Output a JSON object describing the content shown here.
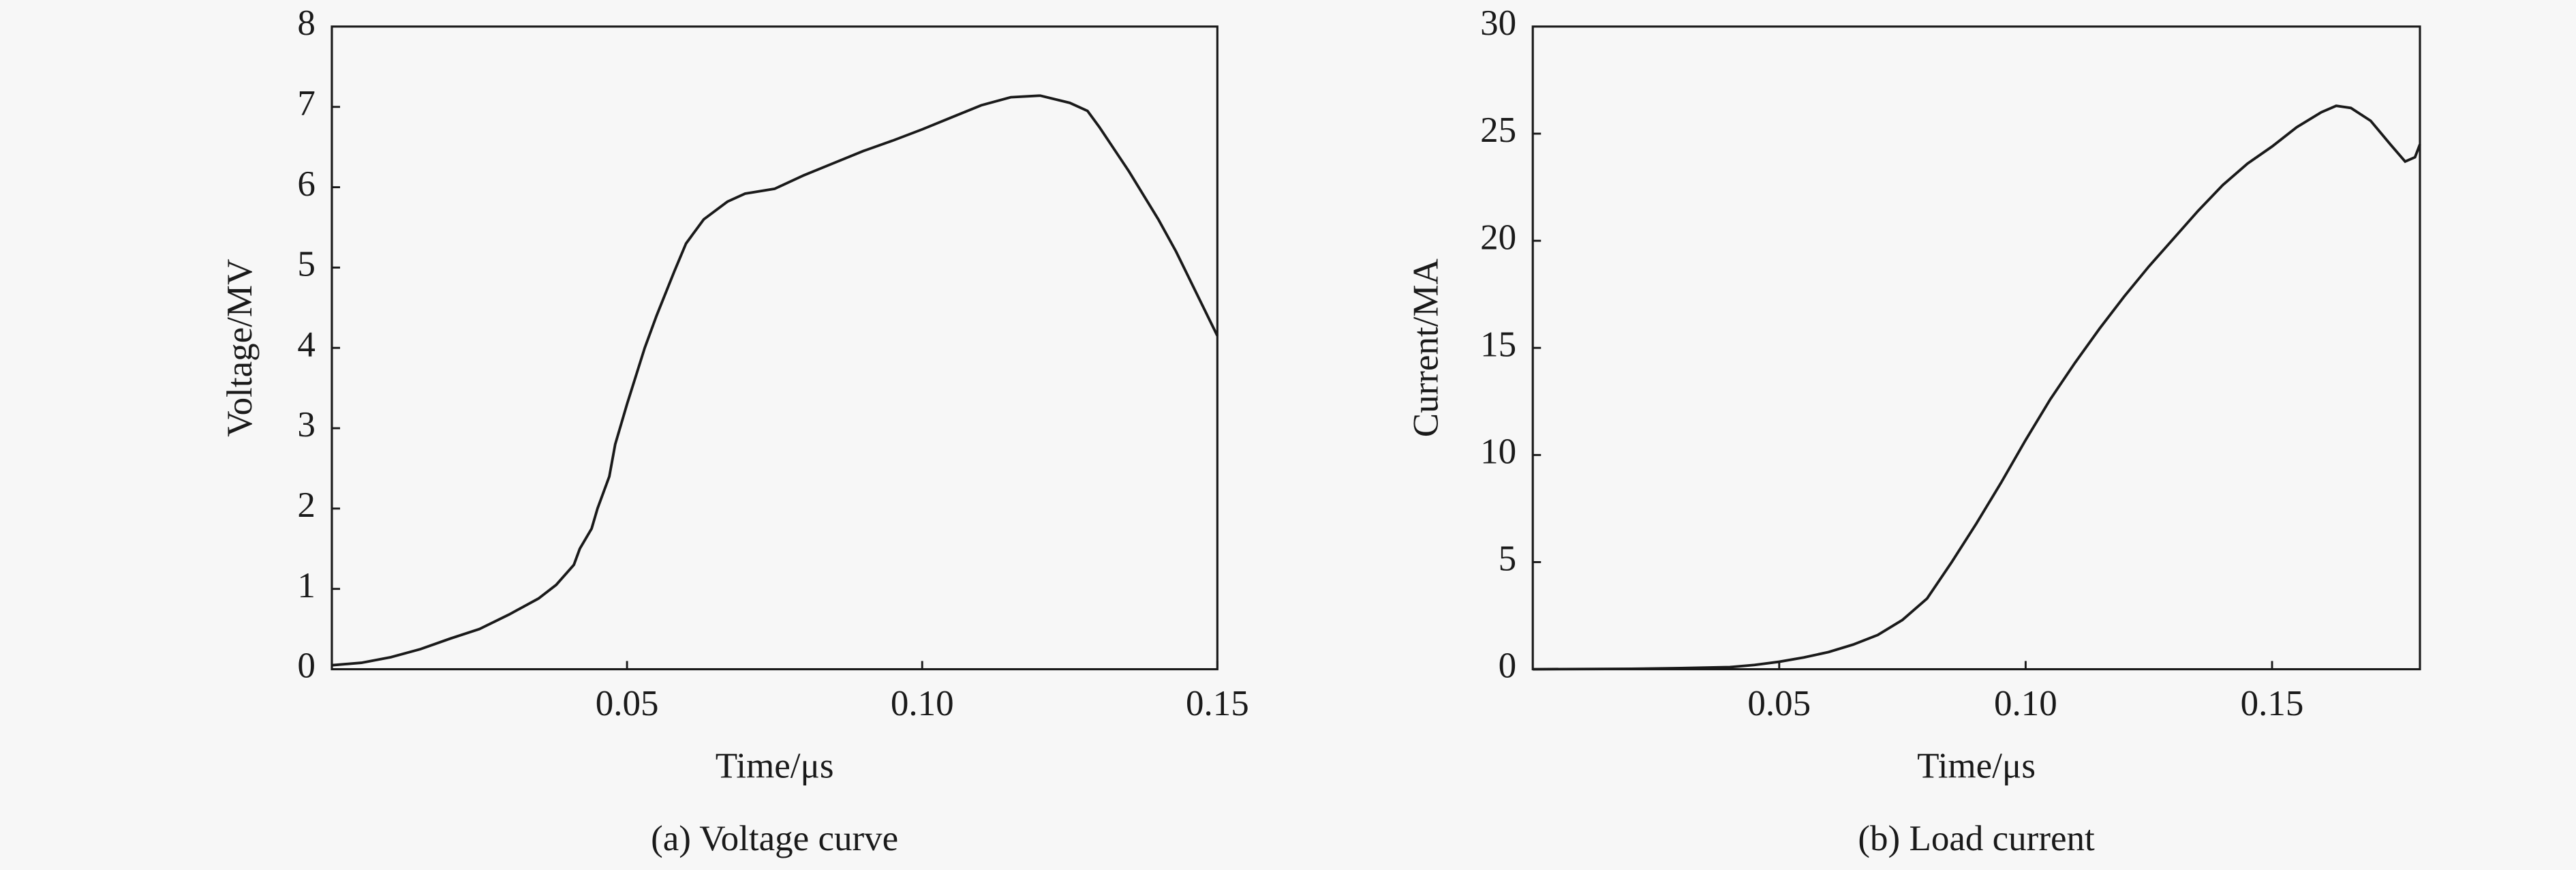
{
  "chart_data": [
    {
      "type": "line",
      "caption": "(a) Voltage curve",
      "xlabel": "Time/μs",
      "ylabel": "Voltage/MV",
      "color": "#1a1a1a",
      "x": [
        0,
        0.005,
        0.01,
        0.015,
        0.02,
        0.025,
        0.03,
        0.035,
        0.038,
        0.041,
        0.042,
        0.044,
        0.045,
        0.047,
        0.048,
        0.05,
        0.053,
        0.055,
        0.058,
        0.06,
        0.063,
        0.067,
        0.07,
        0.075,
        0.08,
        0.085,
        0.09,
        0.095,
        0.1,
        0.105,
        0.11,
        0.115,
        0.12,
        0.125,
        0.128,
        0.13,
        0.135,
        0.14,
        0.143,
        0.147,
        0.15
      ],
      "values": [
        0.05,
        0.08,
        0.15,
        0.25,
        0.38,
        0.5,
        0.68,
        0.88,
        1.05,
        1.3,
        1.5,
        1.75,
        2.0,
        2.4,
        2.8,
        3.3,
        4.0,
        4.4,
        4.95,
        5.3,
        5.6,
        5.82,
        5.92,
        5.98,
        6.15,
        6.3,
        6.45,
        6.58,
        6.72,
        6.87,
        7.02,
        7.12,
        7.14,
        7.05,
        6.95,
        6.75,
        6.2,
        5.6,
        5.2,
        4.6,
        4.15
      ],
      "xlim": [
        0,
        0.15
      ],
      "xticks": [
        0.05,
        {
          "value": 0.1,
          "label": "0.10"
        },
        0.15
      ],
      "ylim": [
        0,
        8
      ],
      "yticks": [
        0,
        1,
        2,
        3,
        4,
        5,
        6,
        7,
        8
      ]
    },
    {
      "type": "line",
      "caption": "(b) Load current",
      "xlabel": "Time/μs",
      "ylabel": "Current/MA",
      "color": "#1a1a1a",
      "x": [
        0,
        0.02,
        0.03,
        0.04,
        0.045,
        0.05,
        0.055,
        0.06,
        0.065,
        0.07,
        0.075,
        0.08,
        0.085,
        0.09,
        0.095,
        0.1,
        0.105,
        0.11,
        0.115,
        0.12,
        0.125,
        0.13,
        0.135,
        0.14,
        0.145,
        0.15,
        0.155,
        0.16,
        0.163,
        0.166,
        0.17,
        0.174,
        0.177,
        0.179,
        0.18
      ],
      "values": [
        0,
        0.02,
        0.05,
        0.1,
        0.2,
        0.35,
        0.55,
        0.8,
        1.15,
        1.6,
        2.3,
        3.3,
        5.0,
        6.8,
        8.7,
        10.7,
        12.6,
        14.3,
        15.9,
        17.4,
        18.8,
        20.1,
        21.4,
        22.6,
        23.6,
        24.4,
        25.3,
        26.0,
        26.3,
        26.2,
        25.6,
        24.5,
        23.7,
        23.9,
        24.5
      ],
      "xlim": [
        0,
        0.18
      ],
      "xticks": [
        0.05,
        {
          "value": 0.1,
          "label": "0.10"
        },
        0.15
      ],
      "ylim": [
        0,
        30
      ],
      "yticks": [
        0,
        5,
        10,
        15,
        20,
        25,
        30
      ]
    }
  ]
}
